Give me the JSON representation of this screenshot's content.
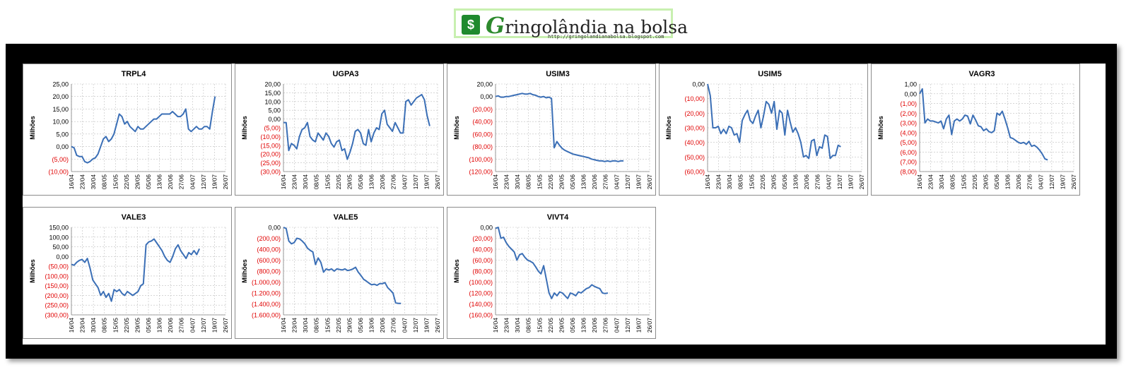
{
  "banner": {
    "brand_g": "G",
    "brand_rest": "ringolândia na bolsa",
    "url": "http://gringolandianabolsa.blogspot.com"
  },
  "chart_data": [
    {
      "type": "line",
      "title": "TRPL4",
      "ylabel": "Milhões",
      "yticks": [
        "25,00",
        "20,00",
        "15,00",
        "10,00",
        "5,00",
        "0,00",
        "(5,00)",
        "(10,00)"
      ],
      "ylim": [
        -10,
        25
      ],
      "xticks": [
        "16/04",
        "23/04",
        "30/04",
        "08/05",
        "15/05",
        "22/05",
        "29/05",
        "05/06",
        "13/06",
        "20/06",
        "27/06",
        "04/07",
        "12/07",
        "19/07",
        "26/07"
      ],
      "series": [
        {
          "color": "#3b6fb6",
          "values": [
            0,
            -0.5,
            -3.5,
            -4,
            -4,
            -6,
            -6.5,
            -6,
            -5,
            -4.5,
            -3,
            0,
            3,
            4,
            2,
            3,
            5,
            9,
            13,
            12,
            9,
            10,
            8,
            7,
            6,
            8,
            7,
            7,
            8,
            9,
            10,
            11,
            11,
            12,
            13,
            13,
            13,
            13,
            14,
            13,
            12,
            12,
            13,
            15,
            7,
            6,
            7,
            8,
            7,
            7,
            8,
            8,
            7,
            14,
            20
          ]
        }
      ]
    },
    {
      "type": "line",
      "title": "UGPA3",
      "ylabel": "Milhões",
      "yticks": [
        "20,00",
        "15,00",
        "10,00",
        "5,00",
        "0,00",
        "(5,00)",
        "(10,00)",
        "(15,00)",
        "(20,00)",
        "(25,00)",
        "(30,00)"
      ],
      "ylim": [
        -30,
        20
      ],
      "xticks": [
        "16/04",
        "23/04",
        "30/04",
        "08/05",
        "15/05",
        "22/05",
        "29/05",
        "05/06",
        "13/06",
        "20/06",
        "27/06",
        "04/07",
        "12/07",
        "19/07",
        "26/07"
      ],
      "series": [
        {
          "color": "#3b6fb6",
          "values": [
            -2,
            -2,
            -18,
            -14,
            -15,
            -17,
            -10,
            -6,
            -5,
            -2,
            -10,
            -12,
            -13,
            -8,
            -10,
            -12,
            -8,
            -10,
            -14,
            -16,
            -13,
            -12,
            -18,
            -17,
            -23,
            -19,
            -14,
            -7,
            -6,
            -8,
            -14,
            -15,
            -6,
            -13,
            -8,
            -5,
            -6,
            3,
            5,
            -3,
            -5,
            -7,
            -2,
            -5,
            -8,
            -8,
            10,
            11,
            8,
            10,
            12,
            13,
            14,
            11,
            2,
            -4
          ]
        }
      ]
    },
    {
      "type": "line",
      "title": "USIM3",
      "ylabel": "Milhões",
      "yticks": [
        "20,00",
        "0,00",
        "(20,00)",
        "(40,00)",
        "(60,00)",
        "(80,00)",
        "(100,00)",
        "(120,00)"
      ],
      "ylim": [
        -120,
        20
      ],
      "xticks": [
        "16/04",
        "23/04",
        "30/04",
        "08/05",
        "15/05",
        "22/05",
        "29/05",
        "05/06",
        "13/06",
        "20/06",
        "27/06",
        "04/07",
        "12/07",
        "19/07",
        "26/07"
      ],
      "series": [
        {
          "color": "#3b6fb6",
          "values": [
            0,
            1,
            -1,
            -1,
            0,
            0,
            1,
            2,
            3,
            4,
            5,
            4,
            4,
            5,
            3,
            2,
            0,
            -1,
            0,
            -2,
            -1,
            -3,
            -82,
            -72,
            -78,
            -83,
            -86,
            -88,
            -90,
            -92,
            -93,
            -94,
            -95,
            -96,
            -97,
            -98,
            -100,
            -101,
            -102,
            -103,
            -103,
            -104,
            -103,
            -104,
            -103,
            -103,
            -104,
            -103,
            -103
          ]
        }
      ]
    },
    {
      "type": "line",
      "title": "USIM5",
      "ylabel": "Milhões",
      "yticks": [
        "0,00",
        "(10,00)",
        "(20,00)",
        "(30,00)",
        "(40,00)",
        "(50,00)",
        "(60,00)"
      ],
      "ylim": [
        -60,
        0
      ],
      "xticks": [
        "16/04",
        "23/04",
        "30/04",
        "08/05",
        "15/05",
        "22/05",
        "29/05",
        "05/06",
        "13/06",
        "20/06",
        "27/06",
        "04/07",
        "12/07",
        "19/07",
        "26/07"
      ],
      "series": [
        {
          "color": "#3b6fb6",
          "values": [
            0,
            -8,
            -30,
            -30,
            -29,
            -34,
            -31,
            -34,
            -29,
            -30,
            -35,
            -34,
            -40,
            -25,
            -21,
            -18,
            -25,
            -27,
            -22,
            -18,
            -30,
            -22,
            -12,
            -14,
            -20,
            -12,
            -31,
            -18,
            -20,
            -35,
            -18,
            -26,
            -33,
            -30,
            -34,
            -40,
            -50,
            -49,
            -51,
            -39,
            -38,
            -49,
            -43,
            -44,
            -35,
            -36,
            -51,
            -49,
            -49,
            -42,
            -43
          ]
        }
      ]
    },
    {
      "type": "line",
      "title": "VAGR3",
      "ylabel": "Milhões",
      "yticks": [
        "1,00",
        "0,00",
        "(1,00)",
        "(2,00)",
        "(3,00)",
        "(4,00)",
        "(5,00)",
        "(6,00)",
        "(7,00)",
        "(8,00)"
      ],
      "ylim": [
        -8,
        1
      ],
      "xticks": [
        "16/04",
        "23/04",
        "30/04",
        "08/05",
        "15/05",
        "22/05",
        "29/05",
        "05/06",
        "13/06",
        "20/06",
        "27/06",
        "04/07",
        "12/07",
        "19/07",
        "26/07"
      ],
      "series": [
        {
          "color": "#3b6fb6",
          "values": [
            0,
            0.5,
            -3,
            -2.6,
            -2.8,
            -2.8,
            -2.9,
            -3,
            -2.8,
            -3.6,
            -2.6,
            -2.2,
            -4.2,
            -2.8,
            -2.6,
            -2.8,
            -2.6,
            -2.2,
            -2.3,
            -3.1,
            -2.2,
            -2.7,
            -3.3,
            -3.4,
            -3.8,
            -3.6,
            -3.9,
            -4,
            -3.8,
            -2,
            -2.2,
            -1.8,
            -2.6,
            -3.5,
            -4.5,
            -4.6,
            -4.8,
            -5,
            -5.1,
            -5,
            -5.2,
            -4.9,
            -5.4,
            -5.3,
            -5.5,
            -5.8,
            -6.2,
            -6.7,
            -6.8
          ]
        }
      ]
    },
    {
      "type": "line",
      "title": "VALE3",
      "ylabel": "Milhões",
      "yticks": [
        "150,00",
        "100,00",
        "50,00",
        "0,00",
        "(50,00)",
        "(100,00)",
        "(150,00)",
        "(200,00)",
        "(250,00)",
        "(300,00)"
      ],
      "ylim": [
        -300,
        150
      ],
      "xticks": [
        "16/04",
        "23/04",
        "30/04",
        "08/05",
        "15/05",
        "22/05",
        "29/05",
        "05/06",
        "13/06",
        "20/06",
        "27/06",
        "04/07",
        "12/07",
        "19/07",
        "26/07"
      ],
      "series": [
        {
          "color": "#3b6fb6",
          "values": [
            -40,
            -45,
            -30,
            -20,
            -15,
            -30,
            -10,
            -60,
            -120,
            -140,
            -160,
            -200,
            -180,
            -210,
            -190,
            -230,
            -170,
            -180,
            -170,
            -190,
            -200,
            -180,
            -190,
            -200,
            -190,
            -180,
            -150,
            -140,
            60,
            75,
            80,
            90,
            70,
            50,
            30,
            0,
            -20,
            -30,
            0,
            40,
            60,
            30,
            10,
            -10,
            20,
            10,
            30,
            10,
            40
          ]
        }
      ]
    },
    {
      "type": "line",
      "title": "VALE5",
      "ylabel": "Milhões",
      "yticks": [
        "0,00",
        "(200,00)",
        "(400,00)",
        "(600,00)",
        "(800,00)",
        "(1.000,00)",
        "(1.200,00)",
        "(1.400,00)",
        "(1.600,00)"
      ],
      "ylim": [
        -1600,
        0
      ],
      "xticks": [
        "16/04",
        "23/04",
        "30/04",
        "08/05",
        "15/05",
        "22/05",
        "29/05",
        "05/06",
        "13/06",
        "20/06",
        "27/06",
        "04/07",
        "12/07",
        "19/07",
        "26/07"
      ],
      "series": [
        {
          "color": "#3b6fb6",
          "values": [
            0,
            -20,
            -250,
            -300,
            -280,
            -200,
            -210,
            -250,
            -300,
            -380,
            -420,
            -450,
            -680,
            -560,
            -640,
            -820,
            -760,
            -780,
            -760,
            -800,
            -760,
            -770,
            -780,
            -760,
            -790,
            -780,
            -760,
            -730,
            -820,
            -880,
            -950,
            -980,
            -1020,
            -1050,
            -1040,
            -1060,
            -1030,
            -1030,
            -1010,
            -1100,
            -1150,
            -1200,
            -1380,
            -1390,
            -1390
          ]
        }
      ]
    },
    {
      "type": "line",
      "title": "VIVT4",
      "ylabel": "Milhões",
      "yticks": [
        "0,00",
        "(20,00)",
        "(40,00)",
        "(60,00)",
        "(80,00)",
        "(100,00)",
        "(120,00)",
        "(140,00)",
        "(160,00)"
      ],
      "ylim": [
        -160,
        0
      ],
      "xticks": [
        "16/04",
        "23/04",
        "30/04",
        "08/05",
        "15/05",
        "22/05",
        "29/05",
        "05/06",
        "13/06",
        "20/06",
        "27/06",
        "04/07",
        "12/07",
        "19/07",
        "26/07"
      ],
      "series": [
        {
          "color": "#3b6fb6",
          "values": [
            -2,
            0,
            -20,
            -18,
            -28,
            -35,
            -40,
            -45,
            -60,
            -50,
            -48,
            -55,
            -60,
            -62,
            -65,
            -72,
            -80,
            -85,
            -70,
            -95,
            -120,
            -130,
            -120,
            -125,
            -118,
            -120,
            -125,
            -130,
            -120,
            -122,
            -125,
            -118,
            -120,
            -116,
            -112,
            -110,
            -105,
            -108,
            -110,
            -112,
            -120,
            -121,
            -120
          ]
        }
      ]
    }
  ]
}
